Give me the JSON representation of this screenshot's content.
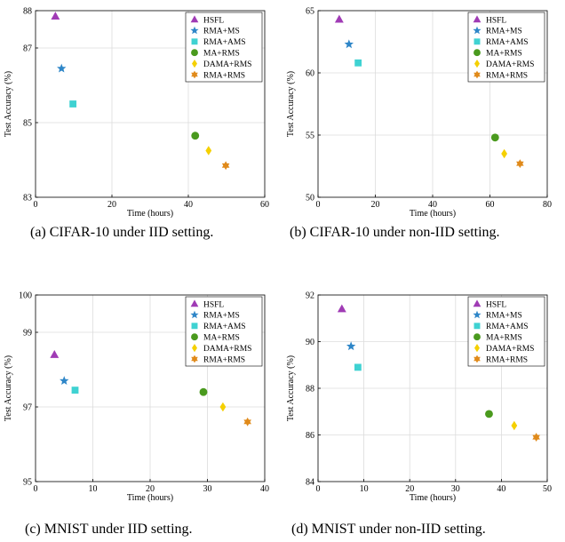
{
  "legend_labels": [
    "HSFL",
    "RMA+MS",
    "RMA+AMS",
    "MA+RMS",
    "DAMA+RMS",
    "RMA+RMS"
  ],
  "colors": {
    "HSFL": "#a03bb5",
    "RMA+MS": "#2e86c8",
    "RMA+AMS": "#3fd2d2",
    "MA+RMS": "#4a9a1e",
    "DAMA+RMS": "#f5d000",
    "RMA+RMS": "#e08a1a",
    "grid": "#dcdcdc"
  },
  "markers": {
    "HSFL": "triangle",
    "RMA+MS": "star",
    "RMA+AMS": "square",
    "MA+RMS": "circle",
    "DAMA+RMS": "diamond",
    "RMA+RMS": "hexagram"
  },
  "chart_data": [
    {
      "type": "scatter",
      "caption": "(a) CIFAR-10 under IID setting.",
      "xlabel": "Time (hours)",
      "ylabel": "Test Accuracy (%)",
      "xlim": [
        0,
        60
      ],
      "ylim": [
        83,
        88
      ],
      "xticks": [
        0,
        20,
        40,
        60
      ],
      "yticks": [
        83,
        85,
        87,
        88
      ],
      "grid": true,
      "legend_position": "top-right",
      "points": [
        {
          "name": "HSFL",
          "x": 5.2,
          "y": 87.85
        },
        {
          "name": "RMA+MS",
          "x": 6.8,
          "y": 86.45
        },
        {
          "name": "RMA+AMS",
          "x": 9.8,
          "y": 85.5
        },
        {
          "name": "MA+RMS",
          "x": 41.8,
          "y": 84.65
        },
        {
          "name": "DAMA+RMS",
          "x": 45.3,
          "y": 84.25
        },
        {
          "name": "RMA+RMS",
          "x": 49.8,
          "y": 83.85
        }
      ]
    },
    {
      "type": "scatter",
      "caption": "(b) CIFAR-10 under non-IID setting.",
      "xlabel": "Time (hours)",
      "ylabel": "Test Accuracy (%)",
      "xlim": [
        0,
        80
      ],
      "ylim": [
        50,
        65
      ],
      "xticks": [
        0,
        20,
        40,
        60,
        80
      ],
      "yticks": [
        50,
        55,
        60,
        65
      ],
      "grid": true,
      "legend_position": "top-right",
      "points": [
        {
          "name": "HSFL",
          "x": 7.4,
          "y": 64.3
        },
        {
          "name": "RMA+MS",
          "x": 10.8,
          "y": 62.3
        },
        {
          "name": "RMA+AMS",
          "x": 14.0,
          "y": 60.8
        },
        {
          "name": "MA+RMS",
          "x": 61.8,
          "y": 54.8
        },
        {
          "name": "DAMA+RMS",
          "x": 65.0,
          "y": 53.5
        },
        {
          "name": "RMA+RMS",
          "x": 70.5,
          "y": 52.7
        }
      ]
    },
    {
      "type": "scatter",
      "caption": "(c) MNIST under IID setting.",
      "xlabel": "Time (hours)",
      "ylabel": "Test Accuracy (%)",
      "xlim": [
        0,
        40
      ],
      "ylim": [
        95,
        100
      ],
      "xticks": [
        0,
        10,
        20,
        30,
        40
      ],
      "yticks": [
        95,
        97,
        99,
        100
      ],
      "grid": true,
      "legend_position": "top-right",
      "points": [
        {
          "name": "HSFL",
          "x": 3.3,
          "y": 98.4
        },
        {
          "name": "RMA+MS",
          "x": 5.0,
          "y": 97.7
        },
        {
          "name": "RMA+AMS",
          "x": 6.9,
          "y": 97.45
        },
        {
          "name": "MA+RMS",
          "x": 29.3,
          "y": 97.4
        },
        {
          "name": "DAMA+RMS",
          "x": 32.7,
          "y": 97.0
        },
        {
          "name": "RMA+RMS",
          "x": 37.0,
          "y": 96.6
        }
      ]
    },
    {
      "type": "scatter",
      "caption": "(d) MNIST under non-IID setting.",
      "xlabel": "Time (hours)",
      "ylabel": "Test Accuracy (%)",
      "xlim": [
        0,
        50
      ],
      "ylim": [
        84,
        92
      ],
      "xticks": [
        0,
        10,
        20,
        30,
        40,
        50
      ],
      "yticks": [
        84,
        86,
        88,
        90,
        92
      ],
      "grid": true,
      "legend_position": "top-right",
      "points": [
        {
          "name": "HSFL",
          "x": 5.2,
          "y": 91.4
        },
        {
          "name": "RMA+MS",
          "x": 7.2,
          "y": 89.8
        },
        {
          "name": "RMA+AMS",
          "x": 8.7,
          "y": 88.9
        },
        {
          "name": "MA+RMS",
          "x": 37.3,
          "y": 86.9
        },
        {
          "name": "DAMA+RMS",
          "x": 42.8,
          "y": 86.4
        },
        {
          "name": "RMA+RMS",
          "x": 47.6,
          "y": 85.9
        }
      ]
    }
  ]
}
